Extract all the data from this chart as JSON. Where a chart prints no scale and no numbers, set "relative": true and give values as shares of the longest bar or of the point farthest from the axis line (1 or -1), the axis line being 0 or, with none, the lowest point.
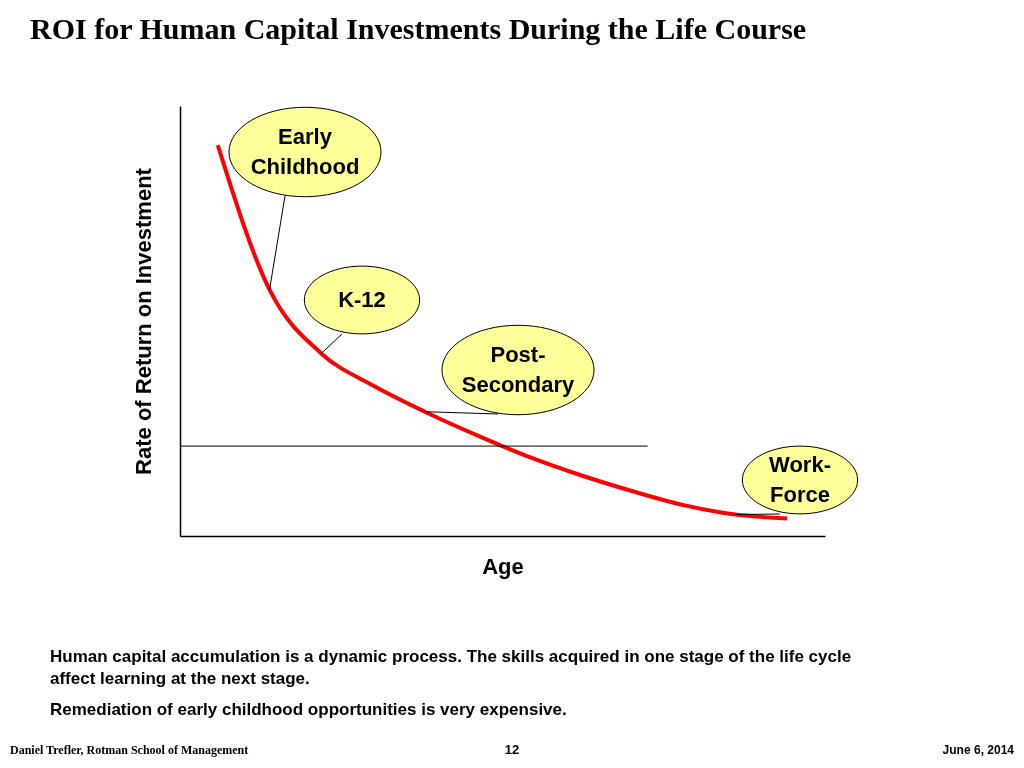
{
  "chart_data": {
    "type": "line",
    "relative": true,
    "title": "ROI for Human Capital Investments During the Life Course",
    "xlabel": "Age",
    "ylabel": "Rate of Return on Investment",
    "categories": [
      null,
      null,
      null,
      null,
      null,
      null,
      null,
      null,
      null,
      null,
      null,
      null
    ],
    "series": [
      {
        "color": "#ff0000",
        "values": [
          1.0,
          0.63,
          0.467,
          0.385,
          0.318,
          0.258,
          0.203,
          0.156,
          0.115,
          0.079,
          0.055,
          0.045
        ]
      }
    ],
    "ref_lines": [
      {
        "axis": "y",
        "value": 0.23,
        "color": "#000000"
      }
    ],
    "annotations": [
      "Early Childhood",
      "K-12",
      "Post-Secondary",
      "Work-Force",
      "Human capital accumulation is a dynamic process. The skills acquired in one stage of the life cycle affect learning at the next stage.",
      "Remediation of early childhood opportunities is very expensive.",
      "Daniel Trefler, Rotman School of Management",
      "12",
      "June 6, 2014"
    ],
    "grid": false,
    "marker": "none",
    "line_style": "solid"
  }
}
